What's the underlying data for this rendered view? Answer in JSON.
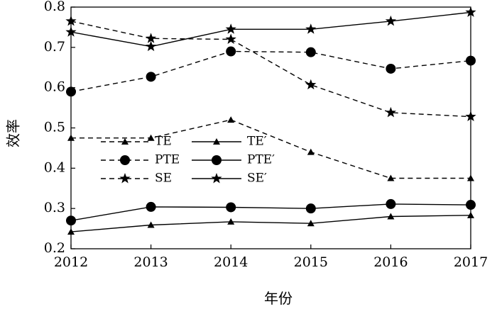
{
  "chart_data": {
    "type": "line",
    "title": "",
    "xlabel": "年份",
    "ylabel": "效率",
    "x": [
      "2012",
      "2013",
      "2014",
      "2015",
      "2016",
      "2017"
    ],
    "ylim": [
      0.2,
      0.8
    ],
    "yticks": [
      "0.2",
      "0.3",
      "0.4",
      "0.5",
      "0.6",
      "0.7",
      "0.8"
    ],
    "grid": false,
    "legend_position": "center-left",
    "series": [
      {
        "name": "TE",
        "marker": "triangle",
        "line": "dashed",
        "values": [
          0.475,
          0.475,
          0.52,
          0.44,
          0.375,
          0.375
        ]
      },
      {
        "name": "PTE",
        "marker": "circle",
        "line": "dashed",
        "values": [
          0.59,
          0.627,
          0.69,
          0.688,
          0.647,
          0.667
        ]
      },
      {
        "name": "SE",
        "marker": "star",
        "line": "dashed",
        "values": [
          0.765,
          0.722,
          0.72,
          0.607,
          0.538,
          0.528
        ]
      },
      {
        "name": "TE′",
        "marker": "triangle",
        "line": "solid",
        "values": [
          0.242,
          0.259,
          0.267,
          0.263,
          0.28,
          0.283
        ]
      },
      {
        "name": "PTE′",
        "marker": "circle",
        "line": "solid",
        "values": [
          0.27,
          0.304,
          0.303,
          0.3,
          0.311,
          0.309
        ]
      },
      {
        "name": "SE′",
        "marker": "star",
        "line": "solid",
        "values": [
          0.738,
          0.702,
          0.745,
          0.745,
          0.765,
          0.787
        ]
      }
    ]
  }
}
